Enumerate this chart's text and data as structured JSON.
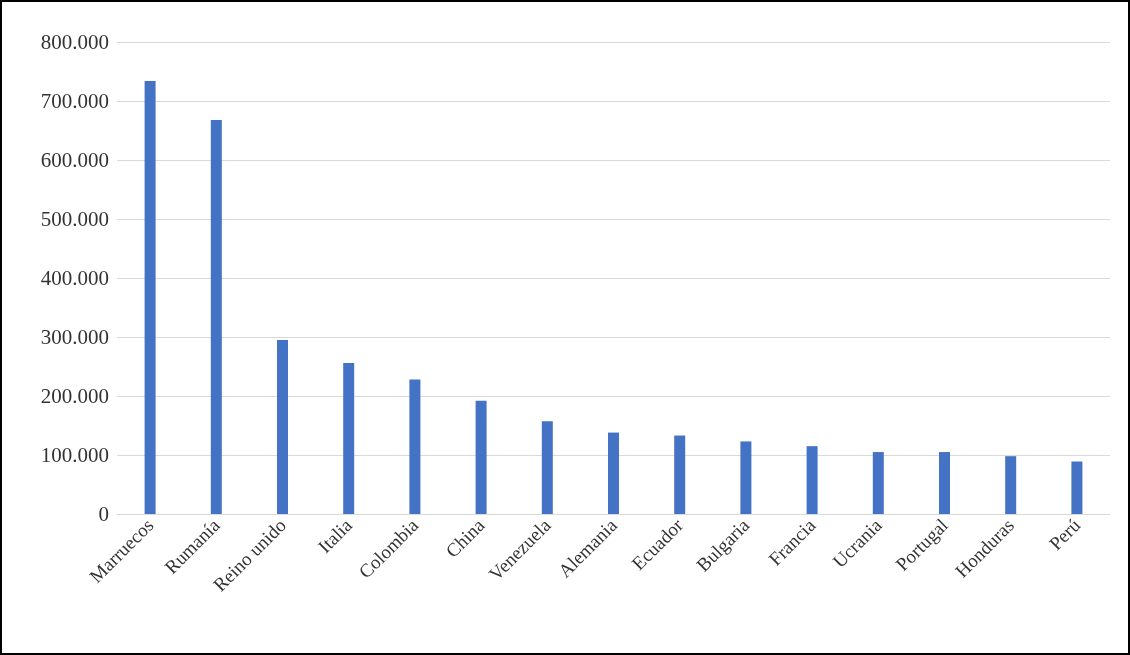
{
  "chart_data": {
    "type": "bar",
    "categories": [
      "Marruecos",
      "Rumanía",
      "Reino unido",
      "Italia",
      "Colombia",
      "China",
      "Venezuela",
      "Alemania",
      "Ecuador",
      "Bulgaria",
      "Francia",
      "Ucrania",
      "Portugal",
      "Honduras",
      "Perú"
    ],
    "values": [
      734000,
      668000,
      295000,
      256000,
      228000,
      192000,
      157000,
      138000,
      133000,
      123000,
      115000,
      105000,
      105000,
      98000,
      89000
    ],
    "color": "#4472c4",
    "ylim": [
      0,
      800000
    ],
    "yticks": [
      {
        "value": 0,
        "label": "0"
      },
      {
        "value": 100000,
        "label": "100.000"
      },
      {
        "value": 200000,
        "label": "200.000"
      },
      {
        "value": 300000,
        "label": "300.000"
      },
      {
        "value": 400000,
        "label": "400.000"
      },
      {
        "value": 500000,
        "label": "500.000"
      },
      {
        "value": 600000,
        "label": "600.000"
      },
      {
        "value": 700000,
        "label": "700.000"
      },
      {
        "value": 800000,
        "label": "800.000"
      }
    ],
    "grid": "y"
  }
}
